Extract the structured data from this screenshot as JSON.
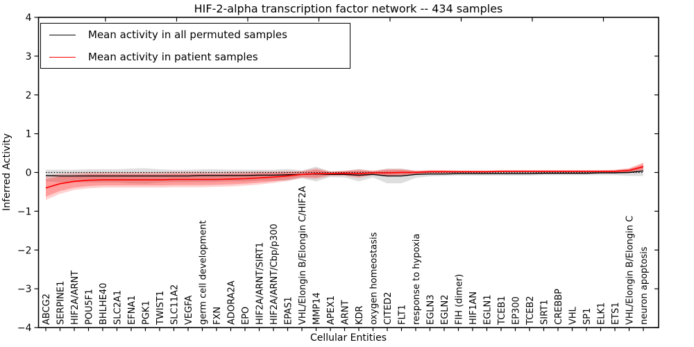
{
  "title": "HIF-2-alpha transcription factor network -- 434 samples",
  "axes": {
    "x_label": "Cellular Entities",
    "y_label": "Inferred Activity",
    "y_tick_labels": [
      "4",
      "3",
      "2",
      "1",
      "0",
      "−1",
      "−2",
      "−3",
      "−4"
    ],
    "y_tick_values": [
      4,
      3,
      2,
      1,
      0,
      -1,
      -2,
      -3,
      -4
    ],
    "y_range": [
      -4,
      4
    ]
  },
  "legend": {
    "entries": [
      {
        "label": "Mean activity in all permuted samples",
        "color": "#000000"
      },
      {
        "label": "Mean activity in patient samples",
        "color": "#ff0000"
      }
    ]
  },
  "chart_data": {
    "type": "line",
    "title": "HIF-2-alpha transcription factor network -- 434 samples",
    "xlabel": "Cellular Entities",
    "ylabel": "Inferred Activity",
    "ylim": [
      -4,
      4
    ],
    "grid": false,
    "legend_position": "upper left",
    "reference_line_y": 0,
    "reference_line_style": "dotted",
    "categories": [
      "ABCG2",
      "SERPINE1",
      "HIF2A/ARNT",
      "POU5F1",
      "BHLHE40",
      "SLC2A1",
      "EFNA1",
      "PGK1",
      "TWIST1",
      "SLC11A2",
      "VEGFA",
      "germ cell development",
      "FXN",
      "ADORA2A",
      "EPO",
      "HIF2A/ARNT/SIRT1",
      "HIF2A/ARNT/Cbp/p300",
      "EPAS1",
      "VHL/Elongin B/Elongin C/HIF2A",
      "MMP14",
      "APEX1",
      "ARNT",
      "KDR",
      "oxygen homeostasis",
      "CITED2",
      "FLT1",
      "response to hypoxia",
      "EGLN3",
      "EGLN2",
      "FIH (dimer)",
      "HIF1AN",
      "EGLN1",
      "TCEB1",
      "EP300",
      "TCEB2",
      "SIRT1",
      "CREBBP",
      "VHL",
      "SP1",
      "ELK1",
      "ETS1",
      "VHL/Elongin B/Elongin C",
      "neuron apoptosis"
    ],
    "series": [
      {
        "name": "Mean activity in all permuted samples",
        "color": "#000000",
        "band_color": "rgba(0,0,0,0.13)",
        "values": [
          -0.08,
          -0.09,
          -0.09,
          -0.09,
          -0.09,
          -0.09,
          -0.09,
          -0.09,
          -0.09,
          -0.09,
          -0.09,
          -0.08,
          -0.08,
          -0.08,
          -0.08,
          -0.07,
          -0.07,
          -0.06,
          -0.05,
          -0.04,
          -0.05,
          -0.05,
          -0.07,
          -0.05,
          -0.09,
          -0.09,
          -0.05,
          -0.04,
          -0.04,
          -0.03,
          -0.03,
          -0.03,
          -0.03,
          -0.03,
          -0.03,
          -0.02,
          -0.02,
          -0.02,
          -0.02,
          -0.01,
          -0.01,
          0.0,
          0.04
        ],
        "band_halfwidth": [
          0.15,
          0.16,
          0.16,
          0.17,
          0.17,
          0.17,
          0.19,
          0.2,
          0.17,
          0.16,
          0.16,
          0.16,
          0.16,
          0.15,
          0.15,
          0.14,
          0.14,
          0.15,
          0.1,
          0.19,
          0.07,
          0.08,
          0.16,
          0.08,
          0.19,
          0.19,
          0.09,
          0.06,
          0.05,
          0.05,
          0.05,
          0.05,
          0.05,
          0.05,
          0.05,
          0.05,
          0.05,
          0.05,
          0.05,
          0.06,
          0.06,
          0.09,
          0.13
        ]
      },
      {
        "name": "Mean activity in patient samples",
        "color": "#ff0000",
        "band_color": "rgba(255,0,0,0.18)",
        "band_inner_color": "rgba(255,0,0,0.25)",
        "values": [
          -0.4,
          -0.29,
          -0.23,
          -0.2,
          -0.19,
          -0.19,
          -0.19,
          -0.19,
          -0.19,
          -0.18,
          -0.18,
          -0.18,
          -0.18,
          -0.17,
          -0.16,
          -0.14,
          -0.12,
          -0.09,
          -0.05,
          -0.03,
          -0.03,
          -0.02,
          -0.03,
          -0.01,
          -0.01,
          0.0,
          0.0,
          0.02,
          0.02,
          0.02,
          0.02,
          0.02,
          0.03,
          0.03,
          0.03,
          0.03,
          0.03,
          0.03,
          0.03,
          0.03,
          0.03,
          0.05,
          0.15
        ],
        "band_halfwidth": [
          0.31,
          0.26,
          0.22,
          0.21,
          0.2,
          0.2,
          0.2,
          0.2,
          0.2,
          0.2,
          0.2,
          0.2,
          0.19,
          0.19,
          0.18,
          0.17,
          0.15,
          0.13,
          0.09,
          0.14,
          0.06,
          0.07,
          0.11,
          0.06,
          0.1,
          0.09,
          0.05,
          0.04,
          0.04,
          0.03,
          0.03,
          0.03,
          0.03,
          0.03,
          0.03,
          0.03,
          0.03,
          0.03,
          0.03,
          0.03,
          0.04,
          0.06,
          0.11
        ]
      }
    ]
  }
}
